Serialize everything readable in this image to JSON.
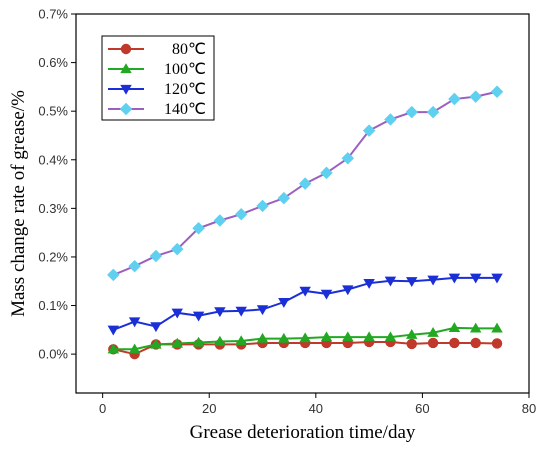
{
  "chart_data": {
    "type": "line",
    "title": "",
    "xlabel": "Grease deterioration time/day",
    "ylabel": "Mass change rate of grease/%",
    "xlim": [
      -5,
      80
    ],
    "ylim": [
      -0.0008,
      0.007
    ],
    "xticks": [
      0,
      20,
      40,
      60,
      80
    ],
    "xtick_labels": [
      "0",
      "20",
      "40",
      "60",
      "80"
    ],
    "yticks": [
      0,
      0.001,
      0.002,
      0.003,
      0.004,
      0.005,
      0.006,
      0.007
    ],
    "ytick_labels": [
      "0.0%",
      "0.1%",
      "0.2%",
      "0.3%",
      "0.4%",
      "0.5%",
      "0.6%",
      "0.7%"
    ],
    "grid": false,
    "legend_position": "top-left",
    "x": [
      2,
      6,
      10,
      14,
      18,
      22,
      26,
      30,
      34,
      38,
      42,
      46,
      50,
      54,
      58,
      62,
      66,
      70,
      74
    ],
    "series": [
      {
        "name": "80℃",
        "color": "#c0392b",
        "marker": "circle",
        "values": [
          0.0001,
          0.0,
          0.0002,
          0.0002,
          0.0002,
          0.0002,
          0.0002,
          0.00023,
          0.00023,
          0.00023,
          0.00023,
          0.00023,
          0.00025,
          0.00025,
          0.00021,
          0.00023,
          0.00023,
          0.00023,
          0.00022
        ]
      },
      {
        "name": "100℃",
        "color": "#22a822",
        "marker": "triangle-up",
        "values": [
          0.0001,
          0.0001,
          0.0002,
          0.00022,
          0.00024,
          0.00026,
          0.00027,
          0.00032,
          0.00032,
          0.00033,
          0.00035,
          0.00035,
          0.00035,
          0.00035,
          0.0004,
          0.00044,
          0.00054,
          0.00053,
          0.00053
        ]
      },
      {
        "name": "120℃",
        "color": "#1a2fd6",
        "marker": "triangle-down",
        "values": [
          0.0005,
          0.00067,
          0.00057,
          0.00085,
          0.00079,
          0.00088,
          0.00089,
          0.00092,
          0.00107,
          0.0013,
          0.00124,
          0.00133,
          0.00146,
          0.00151,
          0.0015,
          0.00153,
          0.00157,
          0.00157,
          0.00157
        ]
      },
      {
        "name": "140℃",
        "color": "#5fd0f0",
        "line_color": "#9b5fc0",
        "marker": "diamond",
        "values": [
          0.00163,
          0.00181,
          0.00202,
          0.00216,
          0.00259,
          0.00275,
          0.00288,
          0.00305,
          0.00321,
          0.00351,
          0.00373,
          0.00403,
          0.0046,
          0.00483,
          0.00498,
          0.00498,
          0.00525,
          0.0053,
          0.0054
        ]
      }
    ]
  }
}
